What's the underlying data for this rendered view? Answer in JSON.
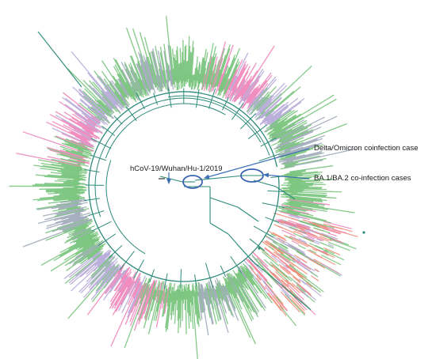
{
  "annotations": {
    "reference": "hCoV-19/Wuhan/Hu-1/2019",
    "delta_omicron": "Delta/Omicron coinfection case",
    "ba1_ba2": "BA.1/BA.2 co-infection cases"
  },
  "colors": {
    "branch": "#2e8b7a",
    "clade_green": "#6fbf73",
    "clade_pink": "#ee7fb6",
    "clade_lavender": "#b3a6d6",
    "clade_salmon": "#f08a72",
    "clade_grey": "#9aa4b5",
    "arrow": "#3d6fb6",
    "ellipse": "#3a64b0"
  }
}
